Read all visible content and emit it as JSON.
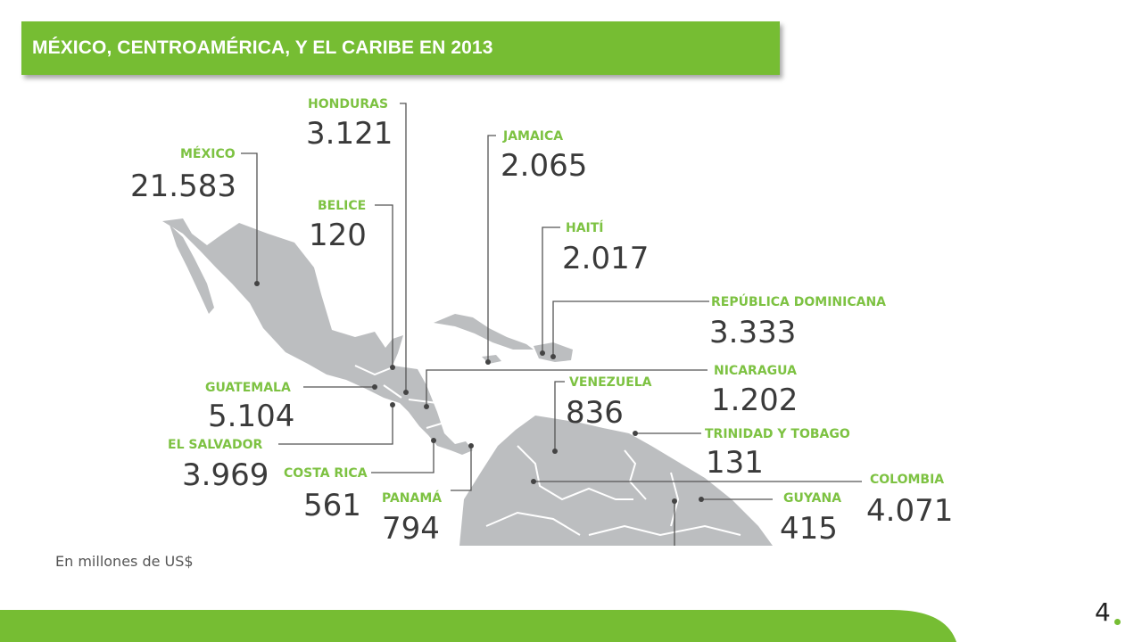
{
  "title": "MÉXICO, CENTROAMÉRICA, Y EL CARIBE EN 2013",
  "note": "En millones de US$",
  "page_number": "4",
  "colors": {
    "brand_green": "#76bd33",
    "land_gray": "#bcbec0",
    "label_green": "#7dc242",
    "value_dark": "#3a3a3a",
    "leader_line": "#555555"
  },
  "countries": [
    {
      "name": "MÉXICO",
      "value": "21.583"
    },
    {
      "name": "HONDURAS",
      "value": "3.121"
    },
    {
      "name": "BELICE",
      "value": "120"
    },
    {
      "name": "JAMAICA",
      "value": "2.065"
    },
    {
      "name": "HAITÍ",
      "value": "2.017"
    },
    {
      "name": "REPÚBLICA DOMINICANA",
      "value": "3.333"
    },
    {
      "name": "GUATEMALA",
      "value": "5.104"
    },
    {
      "name": "NICARAGUA",
      "value": "1.202"
    },
    {
      "name": "VENEZUELA",
      "value": "836"
    },
    {
      "name": "EL SALVADOR",
      "value": "3.969"
    },
    {
      "name": "TRINIDAD Y TOBAGO",
      "value": "131"
    },
    {
      "name": "COSTA RICA",
      "value": "561"
    },
    {
      "name": "COLOMBIA",
      "value": "4.071"
    },
    {
      "name": "PANAMÁ",
      "value": "794"
    },
    {
      "name": "GUYANA",
      "value": "415"
    }
  ]
}
